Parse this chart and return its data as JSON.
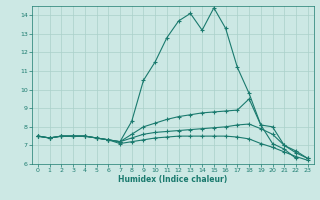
{
  "xlabel": "Humidex (Indice chaleur)",
  "ylabel": "",
  "bg_color": "#cce8e4",
  "grid_color": "#aad0ca",
  "line_color": "#1a7a6e",
  "xlim": [
    -0.5,
    23.5
  ],
  "ylim": [
    6,
    14.5
  ],
  "xticks": [
    0,
    1,
    2,
    3,
    4,
    5,
    6,
    7,
    8,
    9,
    10,
    11,
    12,
    13,
    14,
    15,
    16,
    17,
    18,
    19,
    20,
    21,
    22,
    23
  ],
  "yticks": [
    6,
    7,
    8,
    9,
    10,
    11,
    12,
    13,
    14
  ],
  "line1_x": [
    0,
    1,
    2,
    3,
    4,
    5,
    6,
    7,
    8,
    9,
    10,
    11,
    12,
    13,
    14,
    15,
    16,
    17,
    18,
    19,
    20,
    21,
    22
  ],
  "line1_y": [
    7.5,
    7.4,
    7.5,
    7.5,
    7.5,
    7.4,
    7.3,
    7.2,
    8.3,
    10.5,
    11.5,
    12.8,
    13.7,
    14.1,
    13.2,
    14.4,
    13.3,
    11.2,
    9.8,
    8.1,
    7.1,
    6.8,
    6.3
  ],
  "line2_x": [
    0,
    1,
    2,
    3,
    4,
    5,
    6,
    7,
    8,
    9,
    10,
    11,
    12,
    13,
    14,
    15,
    16,
    17,
    18,
    19,
    20,
    21,
    22,
    23
  ],
  "line2_y": [
    7.5,
    7.4,
    7.5,
    7.5,
    7.5,
    7.4,
    7.3,
    7.2,
    7.6,
    8.0,
    8.2,
    8.4,
    8.55,
    8.65,
    8.75,
    8.8,
    8.85,
    8.9,
    9.5,
    8.1,
    8.0,
    7.0,
    6.7,
    6.3
  ],
  "line3_x": [
    0,
    1,
    2,
    3,
    4,
    5,
    6,
    7,
    8,
    9,
    10,
    11,
    12,
    13,
    14,
    15,
    16,
    17,
    18,
    19,
    20,
    21,
    22,
    23
  ],
  "line3_y": [
    7.5,
    7.4,
    7.5,
    7.5,
    7.5,
    7.4,
    7.3,
    7.2,
    7.4,
    7.6,
    7.7,
    7.75,
    7.8,
    7.85,
    7.9,
    7.95,
    8.0,
    8.1,
    8.15,
    7.9,
    7.6,
    7.0,
    6.6,
    6.3
  ],
  "line4_x": [
    0,
    1,
    2,
    3,
    4,
    5,
    6,
    7,
    8,
    9,
    10,
    11,
    12,
    13,
    14,
    15,
    16,
    17,
    18,
    19,
    20,
    21,
    22,
    23
  ],
  "line4_y": [
    7.5,
    7.4,
    7.5,
    7.5,
    7.5,
    7.4,
    7.3,
    7.1,
    7.2,
    7.3,
    7.4,
    7.45,
    7.5,
    7.5,
    7.5,
    7.5,
    7.5,
    7.45,
    7.35,
    7.1,
    6.9,
    6.65,
    6.4,
    6.2
  ]
}
